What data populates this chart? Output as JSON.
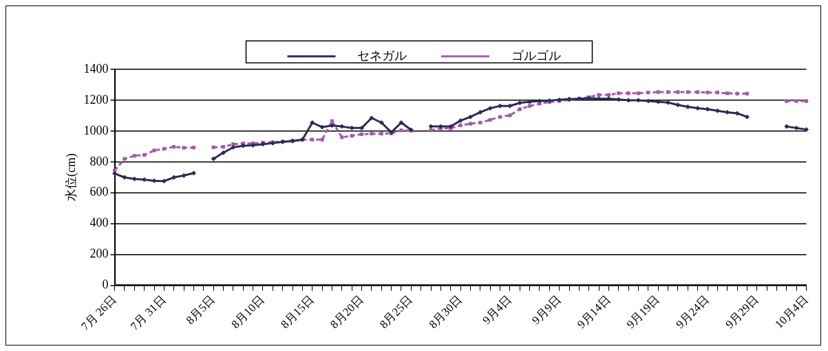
{
  "chart_data": {
    "type": "line",
    "ylabel": "水位(cm)",
    "categories": [
      "7月 26日",
      null,
      null,
      null,
      null,
      "7月 31日",
      null,
      null,
      null,
      null,
      "8月5日",
      null,
      null,
      null,
      null,
      "8月10日",
      null,
      null,
      null,
      null,
      "8月15日",
      null,
      null,
      null,
      null,
      "8月20日",
      null,
      null,
      null,
      null,
      "8月25日",
      null,
      null,
      null,
      null,
      "8月30日",
      null,
      null,
      null,
      null,
      "9月4日",
      null,
      null,
      null,
      null,
      "9月9日",
      null,
      null,
      null,
      null,
      "9月14日",
      null,
      null,
      null,
      null,
      "9月19日",
      null,
      null,
      null,
      null,
      "9月24日",
      null,
      null,
      null,
      null,
      "9月29日",
      null,
      null,
      null,
      null,
      "10月4日"
    ],
    "series": [
      {
        "name": "セネガル",
        "color": "#2b2d52",
        "line_style": "solid",
        "marker": "diamond",
        "values": [
          725,
          700,
          690,
          686,
          678,
          676,
          700,
          712,
          728,
          null,
          820,
          860,
          895,
          905,
          908,
          915,
          922,
          930,
          935,
          945,
          1055,
          1026,
          1036,
          1030,
          1020,
          1020,
          1085,
          1055,
          992,
          1055,
          1008,
          null,
          1030,
          1030,
          1030,
          1068,
          1092,
          1122,
          1148,
          1163,
          1163,
          1183,
          1190,
          1195,
          1198,
          1203,
          1208,
          1210,
          1213,
          1210,
          1210,
          1205,
          1200,
          1200,
          1195,
          1190,
          1185,
          1170,
          1157,
          1148,
          1142,
          1132,
          1122,
          1115,
          1092,
          null,
          null,
          null,
          1030,
          1020,
          1010
        ]
      },
      {
        "name": "ゴルゴル",
        "color": "#a55aab",
        "line_style": "dashed",
        "marker": "square",
        "values": [
          745,
          820,
          840,
          845,
          875,
          885,
          898,
          892,
          893,
          null,
          895,
          898,
          915,
          920,
          920,
          925,
          928,
          932,
          938,
          945,
          945,
          945,
          1065,
          960,
          970,
          980,
          983,
          983,
          985,
          1005,
          1003,
          null,
          1005,
          1018,
          1018,
          1038,
          1048,
          1055,
          1073,
          1092,
          1102,
          1142,
          1163,
          1178,
          1188,
          1195,
          1203,
          1210,
          1220,
          1235,
          1235,
          1245,
          1245,
          1245,
          1250,
          1253,
          1253,
          1253,
          1253,
          1253,
          1250,
          1250,
          1245,
          1243,
          1243,
          null,
          null,
          null,
          1195,
          1195,
          1195
        ]
      }
    ],
    "ylim": [
      0,
      1400
    ],
    "yticks": [
      0,
      200,
      400,
      600,
      800,
      1000,
      1200,
      1400
    ],
    "grid": "y",
    "legend": "top"
  }
}
